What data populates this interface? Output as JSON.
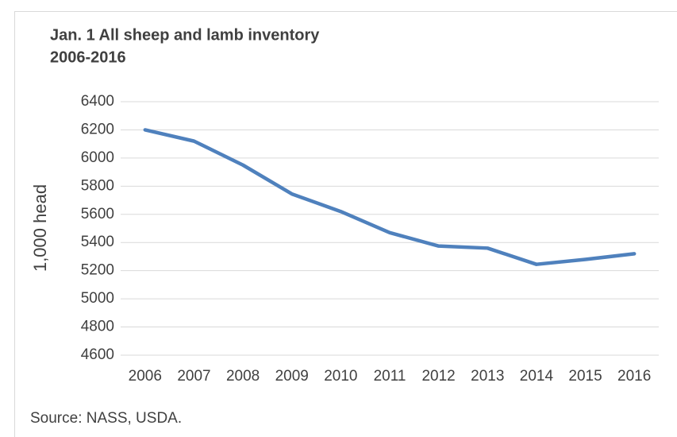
{
  "chart_data": {
    "type": "line",
    "title": "Jan. 1 All sheep and lamb inventory",
    "subtitle": "2006-2016",
    "y_label": "1,000 head",
    "source": "Source: NASS, USDA.",
    "categories": [
      "2006",
      "2007",
      "2008",
      "2009",
      "2010",
      "2011",
      "2012",
      "2013",
      "2014",
      "2015",
      "2016"
    ],
    "series": [
      {
        "name": "All sheep and lamb inventory",
        "color": "#4f81bd",
        "values": [
          6200,
          6120,
          5950,
          5745,
          5620,
          5470,
          5375,
          5360,
          5245,
          5280,
          5320
        ]
      }
    ],
    "ylim": [
      4600,
      6400
    ],
    "yticks": [
      4600,
      4800,
      5000,
      5200,
      5400,
      5600,
      5800,
      6000,
      6200,
      6400
    ],
    "grid": true
  }
}
